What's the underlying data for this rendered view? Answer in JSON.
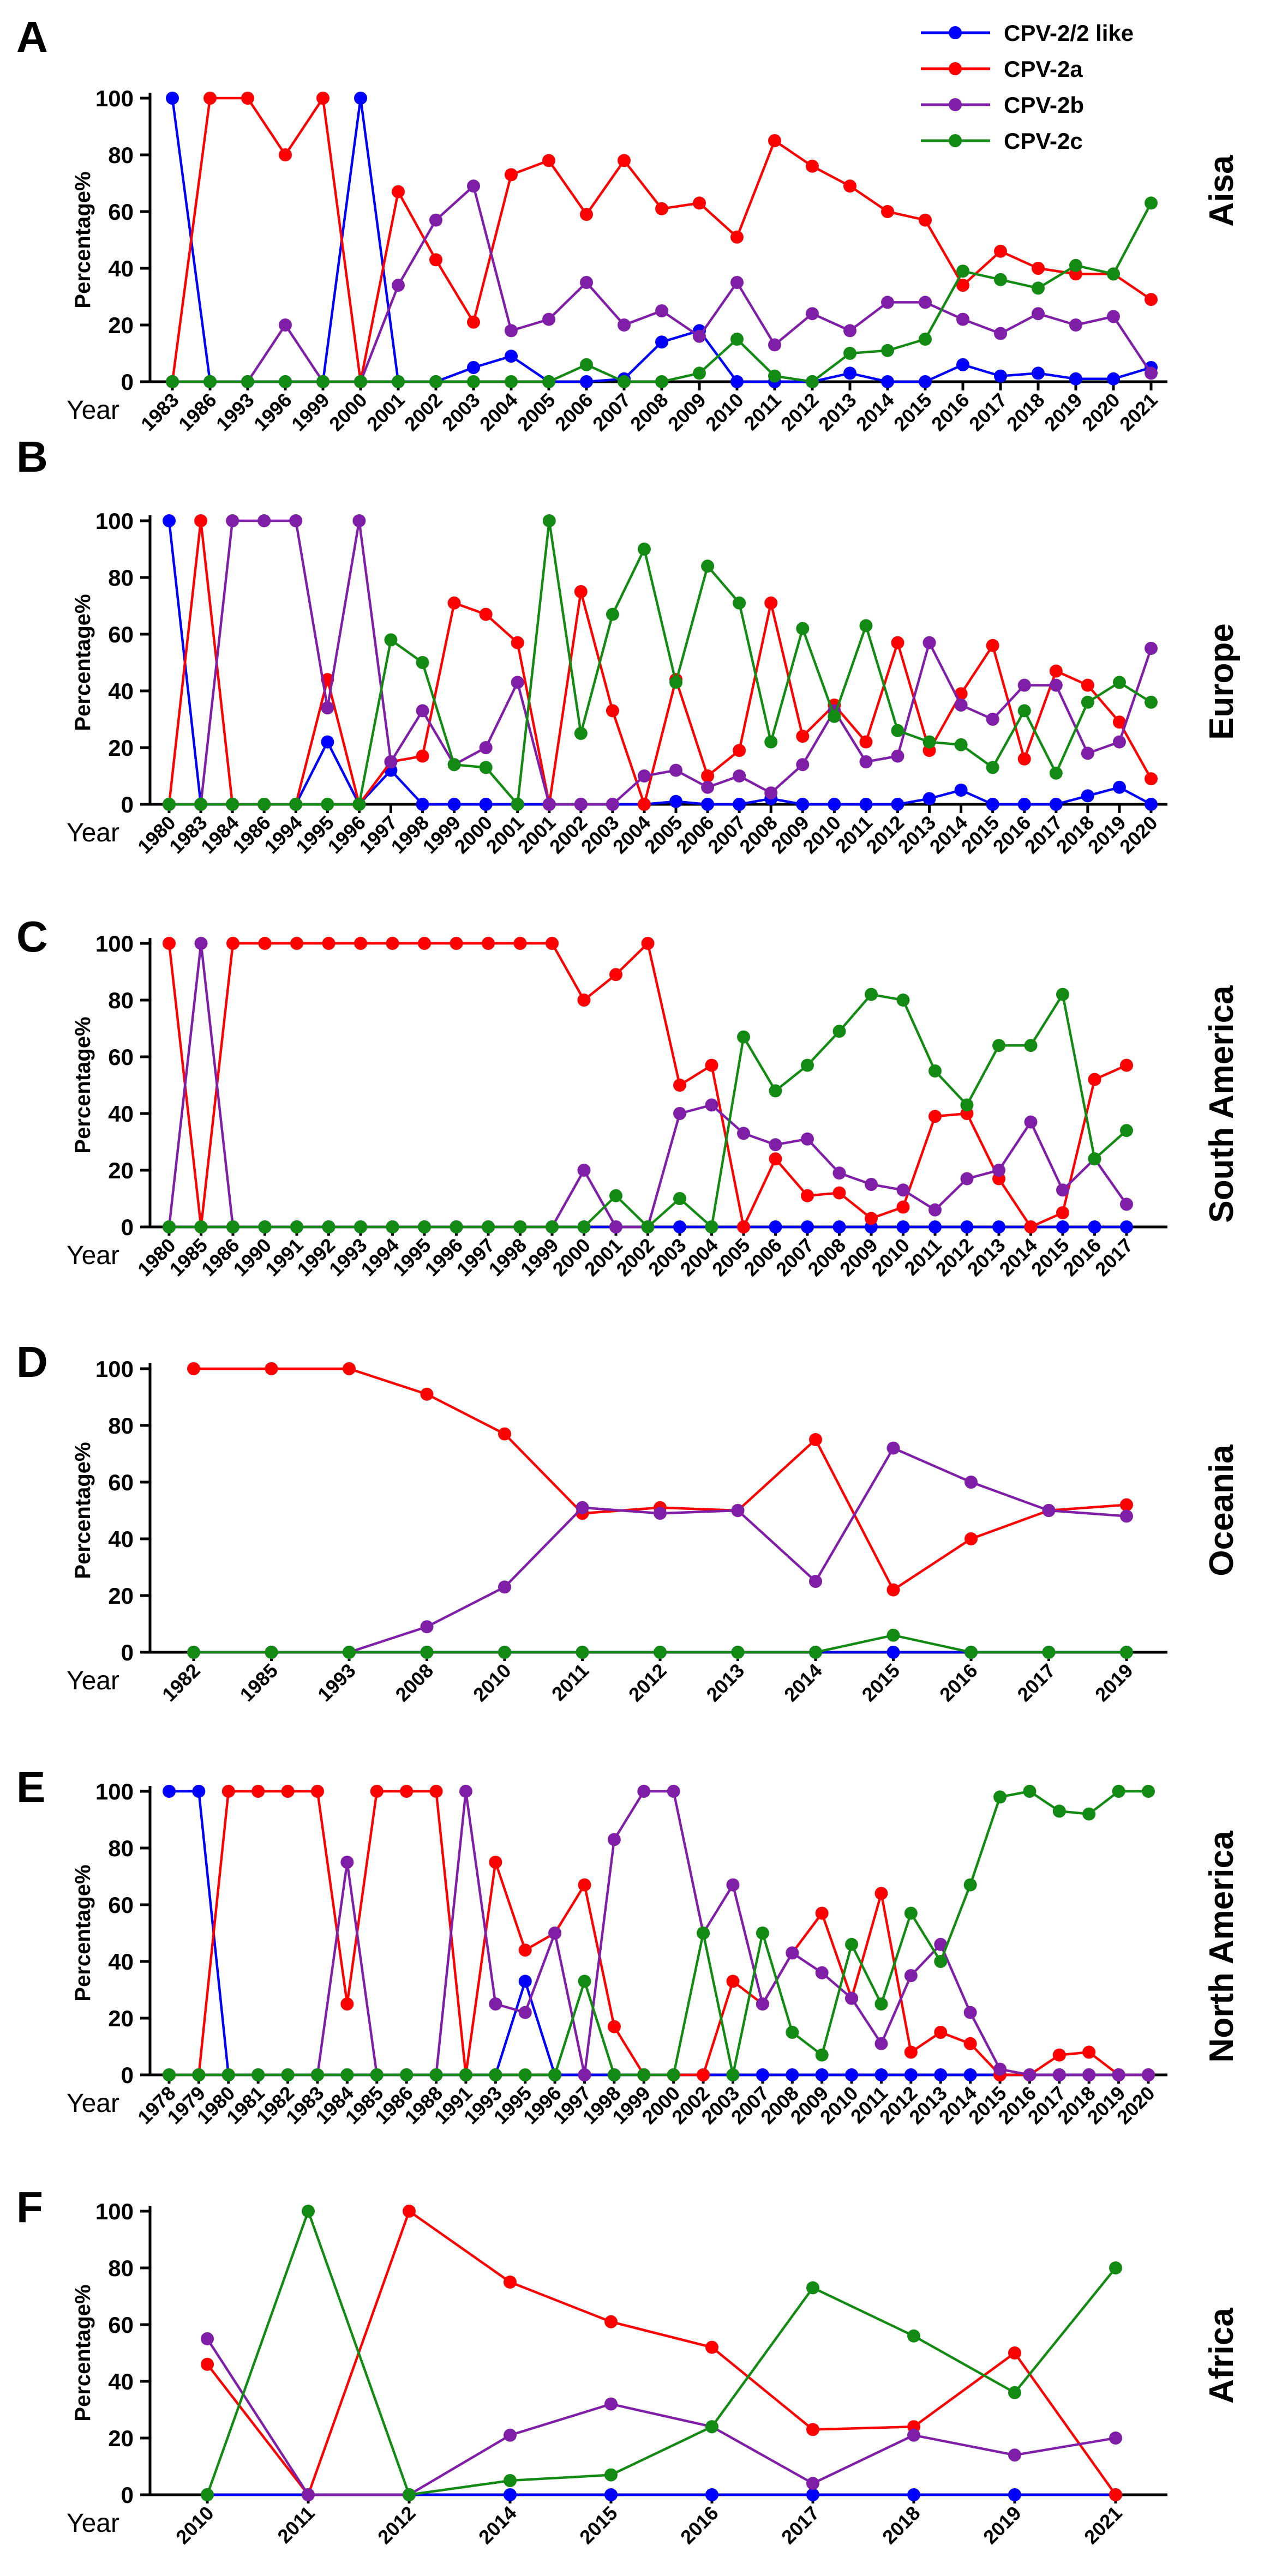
{
  "legend": [
    {
      "name": "CPV-2/2 like",
      "color": "#0000ff"
    },
    {
      "name": "CPV-2a",
      "color": "#ff0000"
    },
    {
      "name": "CPV-2b",
      "color": "#7f1fa8"
    },
    {
      "name": "CPV-2c",
      "color": "#138a13"
    }
  ],
  "chart_data": [
    {
      "type": "line",
      "letter": "A",
      "region": "Aisa",
      "ylabel": "Percentage%",
      "xlabel": "Year",
      "ylim": [
        0,
        100
      ],
      "yticks": [
        "0",
        "20",
        "40",
        "60",
        "80",
        "100"
      ],
      "categories": [
        "1983",
        "1986",
        "1993",
        "1996",
        "1999",
        "2000",
        "2001",
        "2002",
        "2003",
        "2004",
        "2005",
        "2006",
        "2007",
        "2008",
        "2009",
        "2010",
        "2011",
        "2012",
        "2013",
        "2014",
        "2015",
        "2016",
        "2017",
        "2018",
        "2019",
        "2020",
        "2021"
      ],
      "series": [
        {
          "name": "CPV-2/2 like",
          "values": [
            100,
            0,
            0,
            0,
            0,
            100,
            0,
            0,
            5,
            9,
            0,
            0,
            1,
            14,
            18,
            0,
            0,
            0,
            3,
            0,
            0,
            6,
            2,
            3,
            1,
            1,
            5
          ]
        },
        {
          "name": "CPV-2a",
          "values": [
            0,
            100,
            100,
            80,
            100,
            0,
            67,
            43,
            21,
            73,
            78,
            59,
            78,
            61,
            63,
            51,
            85,
            76,
            69,
            60,
            57,
            34,
            46,
            40,
            38,
            38,
            29
          ]
        },
        {
          "name": "CPV-2b",
          "values": [
            0,
            0,
            0,
            20,
            0,
            0,
            34,
            57,
            69,
            18,
            22,
            35,
            20,
            25,
            16,
            35,
            13,
            24,
            18,
            28,
            28,
            22,
            17,
            24,
            20,
            23,
            3
          ]
        },
        {
          "name": "CPV-2c",
          "values": [
            0,
            0,
            0,
            0,
            0,
            0,
            0,
            0,
            0,
            0,
            0,
            6,
            0,
            0,
            3,
            15,
            2,
            0,
            10,
            11,
            15,
            39,
            36,
            33,
            41,
            38,
            63
          ]
        }
      ]
    },
    {
      "type": "line",
      "letter": "B",
      "region": "Europe",
      "ylabel": "Percentage%",
      "xlabel": "Year",
      "ylim": [
        0,
        100
      ],
      "yticks": [
        "0",
        "20",
        "40",
        "60",
        "80",
        "100"
      ],
      "categories": [
        "1980",
        "1983",
        "1984",
        "1986",
        "1994",
        "1995",
        "1996",
        "1997",
        "1998",
        "1999",
        "2000",
        "2001",
        "2001",
        "2002",
        "2003",
        "2004",
        "2005",
        "2006",
        "2007",
        "2008",
        "2009",
        "2010",
        "2011",
        "2012",
        "2013",
        "2014",
        "2015",
        "2016",
        "2017",
        "2018",
        "2019",
        "2020"
      ],
      "series": [
        {
          "name": "CPV-2/2 like",
          "values": [
            100,
            0,
            0,
            0,
            0,
            22,
            0,
            12,
            0,
            0,
            0,
            0,
            0,
            0,
            0,
            0,
            1,
            0,
            0,
            2,
            0,
            0,
            0,
            0,
            2,
            5,
            0,
            0,
            0,
            3,
            6,
            0
          ]
        },
        {
          "name": "CPV-2a",
          "values": [
            0,
            100,
            0,
            0,
            0,
            44,
            0,
            15,
            17,
            71,
            67,
            57,
            0,
            75,
            33,
            0,
            44,
            10,
            19,
            71,
            24,
            35,
            22,
            57,
            19,
            39,
            56,
            16,
            47,
            42,
            29,
            9
          ]
        },
        {
          "name": "CPV-2b",
          "values": [
            0,
            0,
            100,
            100,
            100,
            34,
            100,
            15,
            33,
            14,
            20,
            43,
            0,
            0,
            0,
            10,
            12,
            6,
            10,
            4,
            14,
            33,
            15,
            17,
            57,
            35,
            30,
            42,
            42,
            18,
            22,
            55
          ]
        },
        {
          "name": "CPV-2c",
          "values": [
            0,
            0,
            0,
            0,
            0,
            0,
            0,
            58,
            50,
            14,
            13,
            0,
            100,
            25,
            67,
            90,
            43,
            84,
            71,
            22,
            62,
            31,
            63,
            26,
            22,
            21,
            13,
            33,
            11,
            36,
            43,
            36
          ]
        }
      ]
    },
    {
      "type": "line",
      "letter": "C",
      "region": "South America",
      "ylabel": "Percentage%",
      "xlabel": "Year",
      "ylim": [
        0,
        100
      ],
      "yticks": [
        "0",
        "20",
        "40",
        "60",
        "80",
        "100"
      ],
      "categories": [
        "1980",
        "1985",
        "1986",
        "1990",
        "1991",
        "1992",
        "1993",
        "1994",
        "1995",
        "1996",
        "1997",
        "1998",
        "1999",
        "2000",
        "2001",
        "2002",
        "2003",
        "2004",
        "2005",
        "2006",
        "2007",
        "2008",
        "2009",
        "2010",
        "2011",
        "2012",
        "2013",
        "2014",
        "2015",
        "2016",
        "2017"
      ],
      "series": [
        {
          "name": "CPV-2/2 like",
          "values": [
            0,
            0,
            0,
            0,
            0,
            0,
            0,
            0,
            0,
            0,
            0,
            0,
            0,
            0,
            0,
            0,
            0,
            0,
            0,
            0,
            0,
            0,
            0,
            0,
            0,
            0,
            0,
            0,
            0,
            0,
            0
          ]
        },
        {
          "name": "CPV-2a",
          "values": [
            100,
            0,
            100,
            100,
            100,
            100,
            100,
            100,
            100,
            100,
            100,
            100,
            100,
            80,
            89,
            100,
            50,
            57,
            0,
            24,
            11,
            12,
            3,
            7,
            39,
            40,
            17,
            0,
            5,
            52,
            57
          ]
        },
        {
          "name": "CPV-2b",
          "values": [
            0,
            100,
            0,
            0,
            0,
            0,
            0,
            0,
            0,
            0,
            0,
            0,
            0,
            20,
            0,
            0,
            40,
            43,
            33,
            29,
            31,
            19,
            15,
            13,
            6,
            17,
            20,
            37,
            13,
            24,
            8
          ]
        },
        {
          "name": "CPV-2c",
          "values": [
            0,
            0,
            0,
            0,
            0,
            0,
            0,
            0,
            0,
            0,
            0,
            0,
            0,
            0,
            11,
            0,
            10,
            0,
            67,
            48,
            57,
            69,
            82,
            80,
            55,
            43,
            64,
            64,
            82,
            24,
            34
          ]
        }
      ]
    },
    {
      "type": "line",
      "letter": "D",
      "region": "Oceania",
      "ylabel": "Percentage%",
      "xlabel": "Year",
      "ylim": [
        0,
        100
      ],
      "yticks": [
        "0",
        "20",
        "40",
        "60",
        "80",
        "100"
      ],
      "categories": [
        "1982",
        "1985",
        "1993",
        "2008",
        "2010",
        "2011",
        "2012",
        "2013",
        "2014",
        "2015",
        "2016",
        "2017",
        "2019"
      ],
      "series": [
        {
          "name": "CPV-2/2 like",
          "values": [
            0,
            0,
            0,
            0,
            0,
            0,
            0,
            0,
            0,
            0,
            0,
            0,
            0
          ]
        },
        {
          "name": "CPV-2a",
          "values": [
            100,
            100,
            100,
            91,
            77,
            49,
            51,
            50,
            75,
            22,
            40,
            50,
            52
          ]
        },
        {
          "name": "CPV-2b",
          "values": [
            0,
            0,
            0,
            9,
            23,
            51,
            49,
            50,
            25,
            72,
            60,
            50,
            48
          ]
        },
        {
          "name": "CPV-2c",
          "values": [
            0,
            0,
            0,
            0,
            0,
            0,
            0,
            0,
            0,
            6,
            0,
            0,
            0
          ]
        }
      ]
    },
    {
      "type": "line",
      "letter": "E",
      "region": "North America",
      "ylabel": "Percentage%",
      "xlabel": "Year",
      "ylim": [
        0,
        100
      ],
      "yticks": [
        "0",
        "20",
        "40",
        "60",
        "80",
        "100"
      ],
      "categories": [
        "1978",
        "1979",
        "1980",
        "1981",
        "1982",
        "1983",
        "1984",
        "1985",
        "1986",
        "1988",
        "1991",
        "1993",
        "1995",
        "1996",
        "1997",
        "1998",
        "1999",
        "2000",
        "2002",
        "2003",
        "2007",
        "2008",
        "2009",
        "2010",
        "2011",
        "2012",
        "2013",
        "2014",
        "2015",
        "2016",
        "2017",
        "2018",
        "2019",
        "2020"
      ],
      "series": [
        {
          "name": "CPV-2/2 like",
          "values": [
            100,
            100,
            0,
            0,
            0,
            0,
            0,
            0,
            0,
            0,
            0,
            0,
            33,
            0,
            0,
            0,
            0,
            0,
            0,
            0,
            0,
            0,
            0,
            0,
            0,
            0,
            0,
            0,
            0,
            0,
            0,
            0,
            0,
            0
          ]
        },
        {
          "name": "CPV-2a",
          "values": [
            0,
            0,
            100,
            100,
            100,
            100,
            25,
            100,
            100,
            100,
            0,
            75,
            44,
            50,
            67,
            17,
            0,
            0,
            0,
            33,
            25,
            43,
            57,
            27,
            64,
            8,
            15,
            11,
            0,
            0,
            7,
            8,
            0,
            0
          ]
        },
        {
          "name": "CPV-2b",
          "values": [
            0,
            0,
            0,
            0,
            0,
            0,
            75,
            0,
            0,
            0,
            100,
            25,
            22,
            50,
            0,
            83,
            100,
            100,
            50,
            67,
            25,
            43,
            36,
            27,
            11,
            35,
            46,
            22,
            2,
            0,
            0,
            0,
            0,
            0
          ]
        },
        {
          "name": "CPV-2c",
          "values": [
            0,
            0,
            0,
            0,
            0,
            0,
            0,
            0,
            0,
            0,
            0,
            0,
            0,
            0,
            33,
            0,
            0,
            0,
            50,
            0,
            50,
            15,
            7,
            46,
            25,
            57,
            40,
            67,
            98,
            100,
            93,
            92,
            100,
            100
          ]
        }
      ]
    },
    {
      "type": "line",
      "letter": "F",
      "region": "Africa",
      "ylabel": "Percentage%",
      "xlabel": "Year",
      "ylim": [
        0,
        100
      ],
      "yticks": [
        "0",
        "20",
        "40",
        "60",
        "80",
        "100"
      ],
      "categories": [
        "2010",
        "2011",
        "2012",
        "2014",
        "2015",
        "2016",
        "2017",
        "2018",
        "2019",
        "2021"
      ],
      "series": [
        {
          "name": "CPV-2/2 like",
          "values": [
            0,
            0,
            0,
            0,
            0,
            0,
            0,
            0,
            0,
            0
          ]
        },
        {
          "name": "CPV-2a",
          "values": [
            46,
            0,
            100,
            75,
            61,
            52,
            23,
            24,
            50,
            0
          ]
        },
        {
          "name": "CPV-2b",
          "values": [
            55,
            0,
            0,
            21,
            32,
            24,
            4,
            21,
            14,
            20
          ]
        },
        {
          "name": "CPV-2c",
          "values": [
            0,
            100,
            0,
            5,
            7,
            24,
            73,
            56,
            36,
            80
          ]
        }
      ]
    }
  ]
}
